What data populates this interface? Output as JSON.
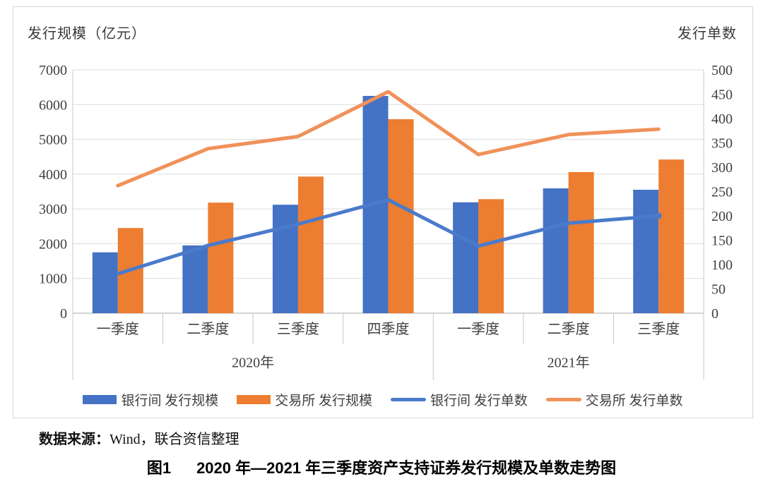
{
  "chart": {
    "left_axis_title": "发行规模（亿元）",
    "right_axis_title": "发行单数"
  },
  "chart_data": {
    "type": "bar",
    "subtype": "combo-bar-line-dual-axis",
    "categories": [
      "一季度",
      "二季度",
      "三季度",
      "四季度",
      "一季度",
      "二季度",
      "三季度"
    ],
    "year_groups": [
      {
        "label": "2020年",
        "span": 4
      },
      {
        "label": "2021年",
        "span": 3
      }
    ],
    "left_axis": {
      "title": "发行规模（亿元）",
      "min": 0,
      "max": 7000,
      "step": 1000
    },
    "right_axis": {
      "title": "发行单数",
      "min": 0,
      "max": 500,
      "step": 50
    },
    "grid": true,
    "legend_position": "bottom",
    "bar_series": [
      {
        "name": "银行间 发行规模",
        "color": "#4472C4",
        "axis": "left",
        "values": [
          1750,
          1950,
          3120,
          6250,
          3190,
          3590,
          3550
        ]
      },
      {
        "name": "交易所 发行规模",
        "color": "#ED7D31",
        "axis": "left",
        "values": [
          2450,
          3180,
          3930,
          5580,
          3280,
          4060,
          4420
        ]
      }
    ],
    "line_series": [
      {
        "name": "银行间 发行单数",
        "color": "#4A7BCB",
        "axis": "right",
        "end_marker": true,
        "values": [
          81,
          139,
          183,
          233,
          138,
          185,
          200
        ]
      },
      {
        "name": "交易所 发行单数",
        "color": "#F0915A",
        "axis": "right",
        "end_marker": false,
        "values": [
          262,
          338,
          363,
          455,
          326,
          367,
          378
        ]
      }
    ]
  },
  "footer": {
    "source_label": "数据来源：",
    "source_text": "Wind，联合资信整理",
    "caption_no": "图1",
    "caption_text": "2020 年—2021 年三季度资产支持证券发行规模及单数走势图"
  }
}
